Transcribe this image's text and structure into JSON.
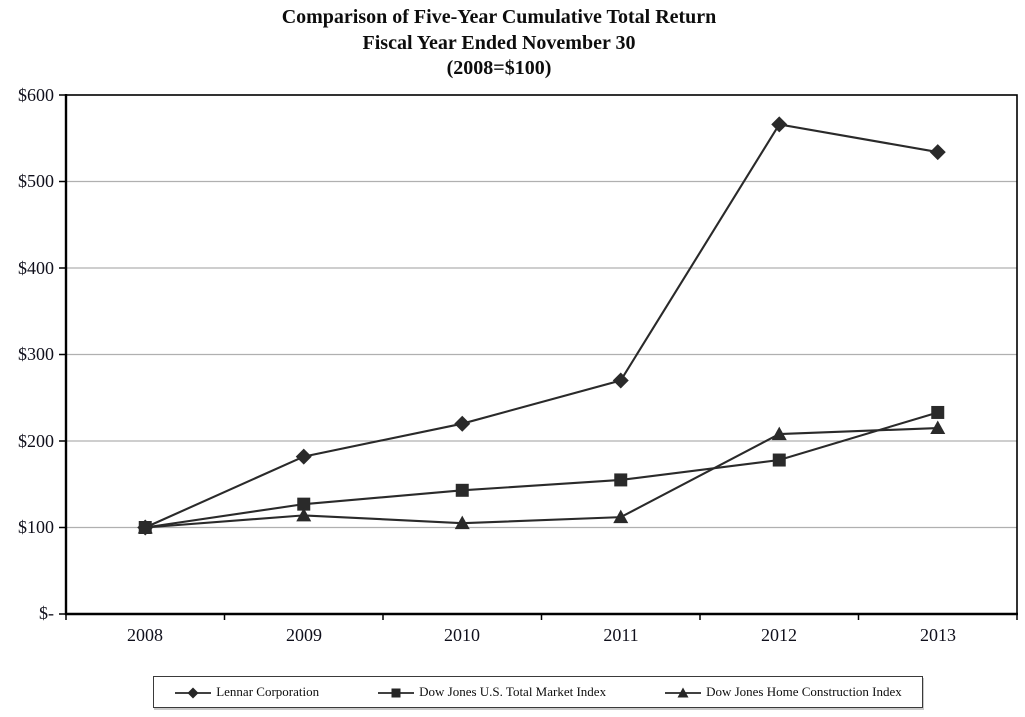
{
  "chart_data": {
    "type": "line",
    "title": "Comparison of Five-Year Cumulative Total Return",
    "subtitle": "Fiscal Year Ended November 30",
    "baseline_note": "(2008=$100)",
    "categories": [
      "2008",
      "2009",
      "2010",
      "2011",
      "2012",
      "2013"
    ],
    "series": [
      {
        "name": "Lennar Corporation",
        "marker": "diamond",
        "values": [
          100,
          182,
          220,
          270,
          566,
          534
        ]
      },
      {
        "name": "Dow Jones U.S. Total Market Index",
        "marker": "square",
        "values": [
          100,
          127,
          143,
          155,
          178,
          233
        ]
      },
      {
        "name": "Dow Jones Home Construction Index",
        "marker": "triangle",
        "values": [
          100,
          114,
          105,
          112,
          208,
          215
        ]
      }
    ],
    "xlabel": "",
    "ylabel": "",
    "ylim": [
      0,
      600
    ],
    "yticks": [
      0,
      100,
      200,
      300,
      400,
      500,
      600
    ],
    "ytick_labels": [
      "$-",
      "$100",
      "$200",
      "$300",
      "$400",
      "$500",
      "$600"
    ],
    "grid": "horizontal",
    "legend_position": "bottom-boxed",
    "colors": {
      "series_color": "#2a2a2a",
      "grid_color": "#b0b0b0",
      "axis_color": "#000000",
      "background": "#ffffff"
    }
  }
}
